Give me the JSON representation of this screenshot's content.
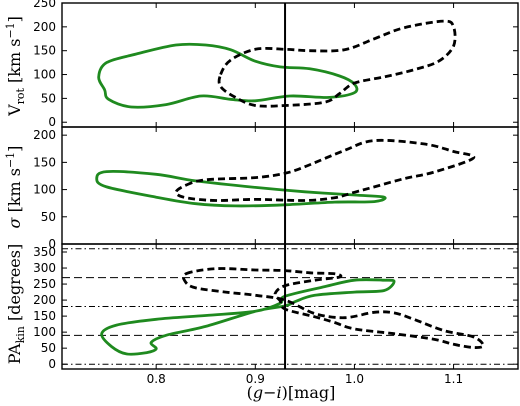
{
  "chart_data": {
    "type": "contour",
    "x_axis": {
      "label": "(g−i)[mag]",
      "xlim": [
        0.705,
        1.165
      ],
      "ticks": [
        0.8,
        0.9,
        1.0,
        1.1
      ],
      "tick_labels": [
        "0.8",
        "0.9",
        "1.0",
        "1.1"
      ]
    },
    "vertical_line_x": 0.93,
    "panels": [
      {
        "id": "vrot",
        "ylabel": "V_rot [km s^-1]",
        "ylim": [
          -10,
          250
        ],
        "ticks": [
          0,
          50,
          100,
          150,
          200,
          250
        ],
        "tick_labels": [
          "0",
          "50",
          "100",
          "150",
          "200",
          "250"
        ],
        "reference_lines": [],
        "series": [
          {
            "style": "solid-green",
            "color": "#1f8a1f",
            "points": [
              [
                0.748,
                68
              ],
              [
                0.742,
                95
              ],
              [
                0.75,
                125
              ],
              [
                0.78,
                143
              ],
              [
                0.82,
                162
              ],
              [
                0.85,
                162
              ],
              [
                0.875,
                152
              ],
              [
                0.9,
                128
              ],
              [
                0.925,
                116
              ],
              [
                0.955,
                112
              ],
              [
                0.985,
                97
              ],
              [
                1.0,
                80
              ],
              [
                1.0,
                62
              ],
              [
                0.975,
                52
              ],
              [
                0.935,
                55
              ],
              [
                0.9,
                45
              ],
              [
                0.875,
                48
              ],
              [
                0.845,
                55
              ],
              [
                0.81,
                37
              ],
              [
                0.775,
                32
              ],
              [
                0.752,
                48
              ],
              [
                0.748,
                68
              ]
            ]
          },
          {
            "style": "dashed-black",
            "color": "#000000",
            "points": [
              [
                0.865,
                100
              ],
              [
                0.875,
                130
              ],
              [
                0.9,
                153
              ],
              [
                0.93,
                153
              ],
              [
                0.955,
                150
              ],
              [
                0.99,
                152
              ],
              [
                1.02,
                175
              ],
              [
                1.05,
                198
              ],
              [
                1.09,
                212
              ],
              [
                1.1,
                200
              ],
              [
                1.1,
                160
              ],
              [
                1.085,
                128
              ],
              [
                1.06,
                110
              ],
              [
                1.03,
                95
              ],
              [
                1.0,
                82
              ],
              [
                0.985,
                60
              ],
              [
                0.97,
                42
              ],
              [
                0.93,
                35
              ],
              [
                0.9,
                35
              ],
              [
                0.88,
                52
              ],
              [
                0.865,
                75
              ],
              [
                0.865,
                100
              ]
            ]
          }
        ]
      },
      {
        "id": "sigma",
        "ylabel": "σ [km s^-1]",
        "ylim": [
          0,
          215
        ],
        "ticks": [
          0,
          50,
          100,
          150,
          200
        ],
        "tick_labels": [
          "0",
          "50",
          "100",
          "150",
          "200"
        ],
        "reference_lines": [],
        "series": [
          {
            "style": "solid-green",
            "color": "#1f8a1f",
            "points": [
              [
                0.74,
                120
              ],
              [
                0.75,
                133
              ],
              [
                0.8,
                128
              ],
              [
                0.84,
                116
              ],
              [
                0.9,
                104
              ],
              [
                0.95,
                96
              ],
              [
                1.0,
                90
              ],
              [
                1.03,
                86
              ],
              [
                1.02,
                78
              ],
              [
                0.98,
                77
              ],
              [
                0.93,
                72
              ],
              [
                0.88,
                70
              ],
              [
                0.84,
                74
              ],
              [
                0.8,
                86
              ],
              [
                0.75,
                105
              ],
              [
                0.74,
                120
              ]
            ]
          },
          {
            "style": "dashed-black",
            "color": "#000000",
            "points": [
              [
                0.83,
                108
              ],
              [
                0.85,
                118
              ],
              [
                0.9,
                122
              ],
              [
                0.93,
                130
              ],
              [
                0.95,
                142
              ],
              [
                0.99,
                172
              ],
              [
                1.02,
                190
              ],
              [
                1.07,
                184
              ],
              [
                1.1,
                170
              ],
              [
                1.12,
                158
              ],
              [
                1.08,
                132
              ],
              [
                1.05,
                120
              ],
              [
                1.02,
                105
              ],
              [
                1.0,
                95
              ],
              [
                0.98,
                85
              ],
              [
                0.95,
                80
              ],
              [
                0.9,
                82
              ],
              [
                0.86,
                80
              ],
              [
                0.83,
                85
              ],
              [
                0.82,
                95
              ],
              [
                0.83,
                108
              ]
            ]
          }
        ]
      },
      {
        "id": "pa",
        "ylabel": "PA_kin [degrees]",
        "ylim": [
          -15,
          375
        ],
        "ticks": [
          0,
          50,
          100,
          150,
          200,
          250,
          300,
          350
        ],
        "tick_labels": [
          "0",
          "50",
          "100",
          "150",
          "200",
          "250",
          "300",
          "350"
        ],
        "reference_lines": [
          {
            "y": 0,
            "style": "dotted"
          },
          {
            "y": 90,
            "style": "dashed"
          },
          {
            "y": 180,
            "style": "dotted"
          },
          {
            "y": 270,
            "style": "dashed"
          },
          {
            "y": 360,
            "style": "dotted"
          }
        ],
        "series": [
          {
            "style": "solid-green",
            "color": "#1f8a1f",
            "points": [
              [
                0.745,
                95
              ],
              [
                0.76,
                122
              ],
              [
                0.8,
                140
              ],
              [
                0.85,
                152
              ],
              [
                0.9,
                165
              ],
              [
                0.925,
                190
              ],
              [
                0.93,
                212
              ],
              [
                0.97,
                242
              ],
              [
                1.0,
                262
              ],
              [
                1.03,
                262
              ],
              [
                1.04,
                258
              ],
              [
                1.03,
                230
              ],
              [
                1.0,
                225
              ],
              [
                0.96,
                215
              ],
              [
                0.94,
                195
              ],
              [
                0.93,
                182
              ],
              [
                0.9,
                165
              ],
              [
                0.85,
                118
              ],
              [
                0.81,
                90
              ],
              [
                0.795,
                68
              ],
              [
                0.8,
                48
              ],
              [
                0.79,
                36
              ],
              [
                0.77,
                32
              ],
              [
                0.755,
                55
              ],
              [
                0.745,
                95
              ]
            ]
          },
          {
            "style": "dashed-black",
            "color": "#000000",
            "points": [
              [
                0.83,
                282
              ],
              [
                0.86,
                298
              ],
              [
                0.9,
                294
              ],
              [
                0.93,
                292
              ],
              [
                0.955,
                285
              ],
              [
                0.98,
                282
              ],
              [
                0.985,
                272
              ],
              [
                0.96,
                262
              ],
              [
                0.93,
                245
              ],
              [
                0.92,
                220
              ],
              [
                0.925,
                198
              ],
              [
                0.93,
                172
              ],
              [
                0.96,
                148
              ],
              [
                0.98,
                130
              ],
              [
                1.0,
                110
              ],
              [
                1.04,
                95
              ],
              [
                1.08,
                78
              ],
              [
                1.1,
                62
              ],
              [
                1.12,
                52
              ],
              [
                1.13,
                58
              ],
              [
                1.12,
                85
              ],
              [
                1.09,
                105
              ],
              [
                1.06,
                140
              ],
              [
                1.04,
                160
              ],
              [
                1.02,
                162
              ],
              [
                0.99,
                145
              ],
              [
                0.96,
                158
              ],
              [
                0.93,
                200
              ],
              [
                0.9,
                215
              ],
              [
                0.87,
                225
              ],
              [
                0.84,
                238
              ],
              [
                0.83,
                255
              ],
              [
                0.83,
                282
              ]
            ]
          }
        ]
      }
    ]
  }
}
